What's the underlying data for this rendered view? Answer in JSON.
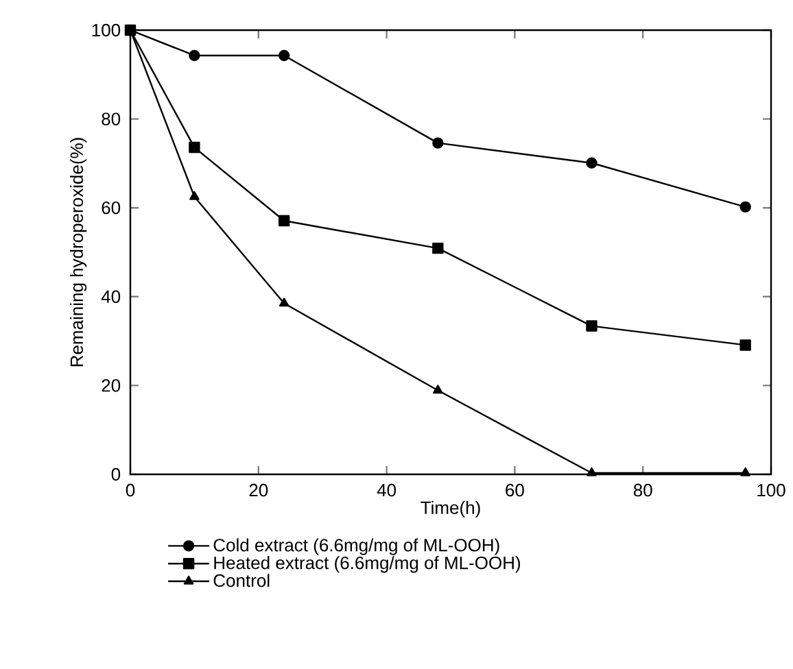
{
  "chart_data": {
    "type": "line",
    "xlabel": "Time(h)",
    "ylabel": "Remaining hydroperoxide(%)",
    "x": [
      0,
      10,
      24,
      48,
      72,
      96
    ],
    "xlim": [
      0,
      100
    ],
    "xticks": [
      0,
      20,
      40,
      60,
      80,
      100
    ],
    "ylim": [
      0,
      100
    ],
    "yticks": [
      0,
      20,
      40,
      60,
      80,
      100
    ],
    "grid": false,
    "legend": "bottom",
    "line_style": "solid",
    "series": [
      {
        "name": "Cold extract (6.6mg/mg of ML-OOH)",
        "color": "#000000",
        "marker": "circle",
        "values": [
          100,
          94.3,
          94.3,
          74.6,
          70.1,
          60.2
        ]
      },
      {
        "name": "Heated extract (6.6mg/mg of ML-OOH)",
        "color": "#000000",
        "marker": "square",
        "values": [
          100,
          73.6,
          57.1,
          50.9,
          33.4,
          29.1
        ]
      },
      {
        "name": "Control",
        "color": "#000000",
        "marker": "triangle",
        "values": [
          100,
          62.5,
          38.5,
          18.9,
          0.3,
          0.3
        ]
      }
    ]
  }
}
